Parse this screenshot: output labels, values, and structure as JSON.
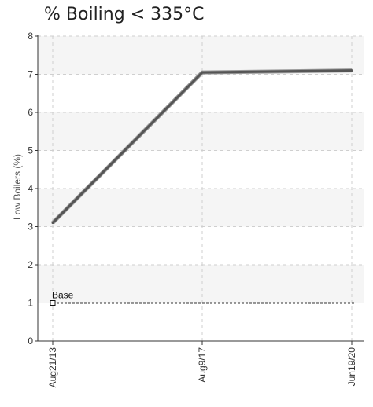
{
  "chart_data": {
    "type": "line",
    "title": "% Boiling < 335°C",
    "xlabel": "",
    "ylabel": "Low Boilers (%)",
    "categories": [
      "Aug21/13",
      "Aug9/17",
      "Jun19/20"
    ],
    "ylim": [
      0,
      8
    ],
    "yticks": [
      "0",
      "1",
      "2",
      "3",
      "4",
      "5",
      "6",
      "7",
      "8"
    ],
    "grid": true,
    "series": [
      {
        "values": [
          3.1,
          7.05,
          7.1
        ],
        "color": "#555555"
      }
    ],
    "reference_line": {
      "name": "Base",
      "value": 1,
      "color": "#333333"
    }
  }
}
